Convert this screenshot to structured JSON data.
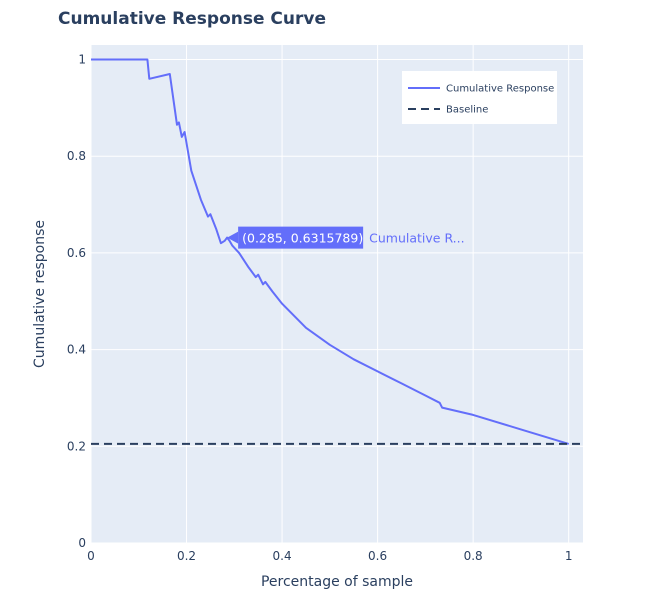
{
  "chart_data": {
    "type": "line",
    "title": "Cumulative Response Curve",
    "xlabel": "Percentage of sample",
    "ylabel": "Cumulative response",
    "xlim": [
      0,
      1.03
    ],
    "ylim": [
      0,
      1.03
    ],
    "x_ticks": [
      0,
      0.2,
      0.4,
      0.6,
      0.8,
      1
    ],
    "x_tick_labels": [
      "0",
      "0.2",
      "0.4",
      "0.6",
      "0.8",
      "1"
    ],
    "y_ticks": [
      0,
      0.2,
      0.4,
      0.6,
      0.8,
      1
    ],
    "y_tick_labels": [
      "0",
      "0.2",
      "0.4",
      "0.6",
      "0.8",
      "1"
    ],
    "grid": true,
    "legend_position": "top-right",
    "series": [
      {
        "name": "Cumulative Response",
        "color": "#636efa",
        "style": "solid",
        "x": [
          0,
          0.118,
          0.122,
          0.165,
          0.18,
          0.184,
          0.19,
          0.196,
          0.21,
          0.23,
          0.245,
          0.25,
          0.262,
          0.272,
          0.28,
          0.285,
          0.29,
          0.296,
          0.31,
          0.33,
          0.345,
          0.35,
          0.36,
          0.365,
          0.38,
          0.4,
          0.45,
          0.5,
          0.55,
          0.6,
          0.65,
          0.7,
          0.73,
          0.735,
          0.8,
          0.9,
          1.0
        ],
        "y": [
          1.0,
          1.0,
          0.96,
          0.97,
          0.865,
          0.87,
          0.84,
          0.85,
          0.77,
          0.71,
          0.675,
          0.68,
          0.65,
          0.62,
          0.625,
          0.6316,
          0.625,
          0.615,
          0.6,
          0.57,
          0.55,
          0.555,
          0.535,
          0.54,
          0.52,
          0.495,
          0.445,
          0.41,
          0.38,
          0.355,
          0.33,
          0.305,
          0.29,
          0.28,
          0.265,
          0.235,
          0.205
        ]
      },
      {
        "name": "Baseline",
        "color": "#2a3f5f",
        "style": "dashed",
        "x": [
          0,
          1.03
        ],
        "y": [
          0.205,
          0.205
        ]
      }
    ],
    "hover": {
      "x": 0.285,
      "y": 0.6316,
      "value_label": "(0.285, 0.6315789)",
      "trace_label": "Cumulative R..."
    }
  }
}
